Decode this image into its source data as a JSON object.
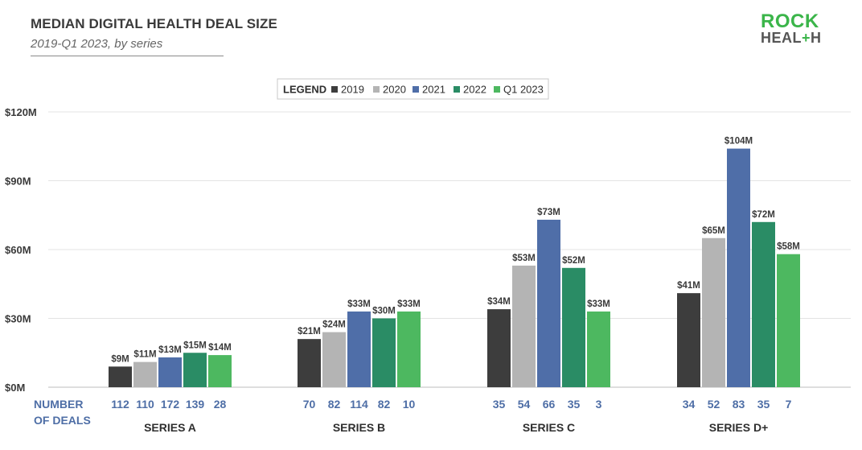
{
  "header": {
    "title": "MEDIAN DIGITAL HEALTH DEAL SIZE",
    "subtitle": "2019-Q1 2023, by series"
  },
  "logo": {
    "line1": "ROCK",
    "line2a": "HEAL",
    "line2b": "+",
    "line2c": "H"
  },
  "legend": {
    "title": "LEGEND"
  },
  "deals_label": {
    "line1": "NUMBER",
    "line2": "OF DEALS"
  },
  "chart_data": {
    "type": "bar",
    "title": "MEDIAN DIGITAL HEALTH DEAL SIZE",
    "subtitle": "2019-Q1 2023, by series",
    "categories": [
      "SERIES A",
      "SERIES B",
      "SERIES C",
      "SERIES D+"
    ],
    "ylim": [
      0,
      120
    ],
    "yticks": [
      0,
      30,
      60,
      90,
      120
    ],
    "ytick_labels": [
      "$0M",
      "$30M",
      "$60M",
      "$90M",
      "$120M"
    ],
    "grid": true,
    "legend_position": "top-center",
    "series": [
      {
        "name": "2019",
        "color": "#3d3d3d",
        "values": [
          9,
          21,
          34,
          41
        ],
        "labels": [
          "$9M",
          "$21M",
          "$34M",
          "$41M"
        ],
        "deals": [
          112,
          70,
          35,
          34
        ]
      },
      {
        "name": "2020",
        "color": "#b4b4b4",
        "values": [
          11,
          24,
          53,
          65
        ],
        "labels": [
          "$11M",
          "$24M",
          "$53M",
          "$65M"
        ],
        "deals": [
          110,
          82,
          54,
          52
        ]
      },
      {
        "name": "2021",
        "color": "#4f6ea8",
        "values": [
          13,
          33,
          73,
          104
        ],
        "labels": [
          "$13M",
          "$33M",
          "$73M",
          "$104M"
        ],
        "deals": [
          172,
          114,
          66,
          83
        ]
      },
      {
        "name": "2022",
        "color": "#2a8c65",
        "values": [
          15,
          30,
          52,
          72
        ],
        "labels": [
          "$15M",
          "$30M",
          "$52M",
          "$72M"
        ],
        "deals": [
          139,
          82,
          35,
          35
        ]
      },
      {
        "name": "Q1 2023",
        "color": "#4db860",
        "values": [
          14,
          33,
          33,
          58
        ],
        "labels": [
          "$14M",
          "$33M",
          "$33M",
          "$58M"
        ],
        "deals": [
          28,
          10,
          3,
          7
        ]
      }
    ],
    "colors": {
      "deals_text": "#4e6ea6",
      "axis_text": "#3a3a3a",
      "grid": "#e3e3e3"
    }
  }
}
